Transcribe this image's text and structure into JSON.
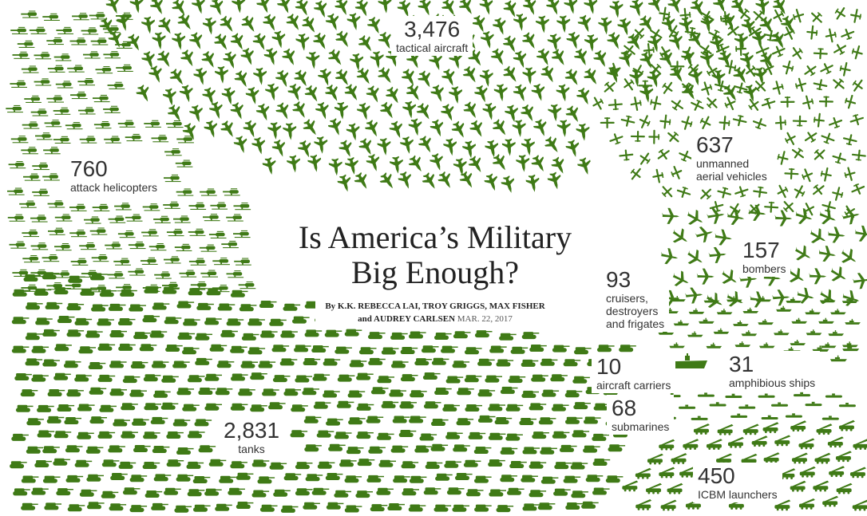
{
  "headline": {
    "line1": "Is America’s Military",
    "line2": "Big Enough?"
  },
  "byline": {
    "prefix": "By",
    "line1_authors": "K.K. REBECCA LAI, TROY GRIGGS, MAX FISHER",
    "line2_authors": "and AUDREY CARLSEN",
    "date": "MAR. 22, 2017"
  },
  "colors": {
    "icon": "#3f7a16",
    "text": "#333333"
  },
  "categories": [
    {
      "key": "tactical",
      "icon": "fighter-jet-icon",
      "count": "3,476",
      "label": "tactical aircraft"
    },
    {
      "key": "uav",
      "icon": "drone-icon",
      "count": "637",
      "label_lines": [
        "unmanned",
        "aerial vehicles"
      ]
    },
    {
      "key": "helicopters",
      "icon": "helicopter-icon",
      "count": "760",
      "label": "attack helicopters"
    },
    {
      "key": "bombers",
      "icon": "bomber-icon",
      "count": "157",
      "label": "bombers"
    },
    {
      "key": "cruisers",
      "icon": "warship-icon",
      "count": "93",
      "label_lines": [
        "cruisers,",
        "destroyers",
        "and frigates"
      ]
    },
    {
      "key": "carriers",
      "icon": "aircraft-carrier-icon",
      "count": "10",
      "label": "aircraft carriers"
    },
    {
      "key": "amphibious",
      "icon": "amphibious-ship-icon",
      "count": "31",
      "label": "amphibious ships"
    },
    {
      "key": "submarines",
      "icon": "submarine-icon",
      "count": "68",
      "label": "submarines"
    },
    {
      "key": "tanks",
      "icon": "tank-icon",
      "count": "2,831",
      "label": "tanks"
    },
    {
      "key": "icbm",
      "icon": "missile-launcher-icon",
      "count": "450",
      "label": "ICBM launchers"
    }
  ]
}
